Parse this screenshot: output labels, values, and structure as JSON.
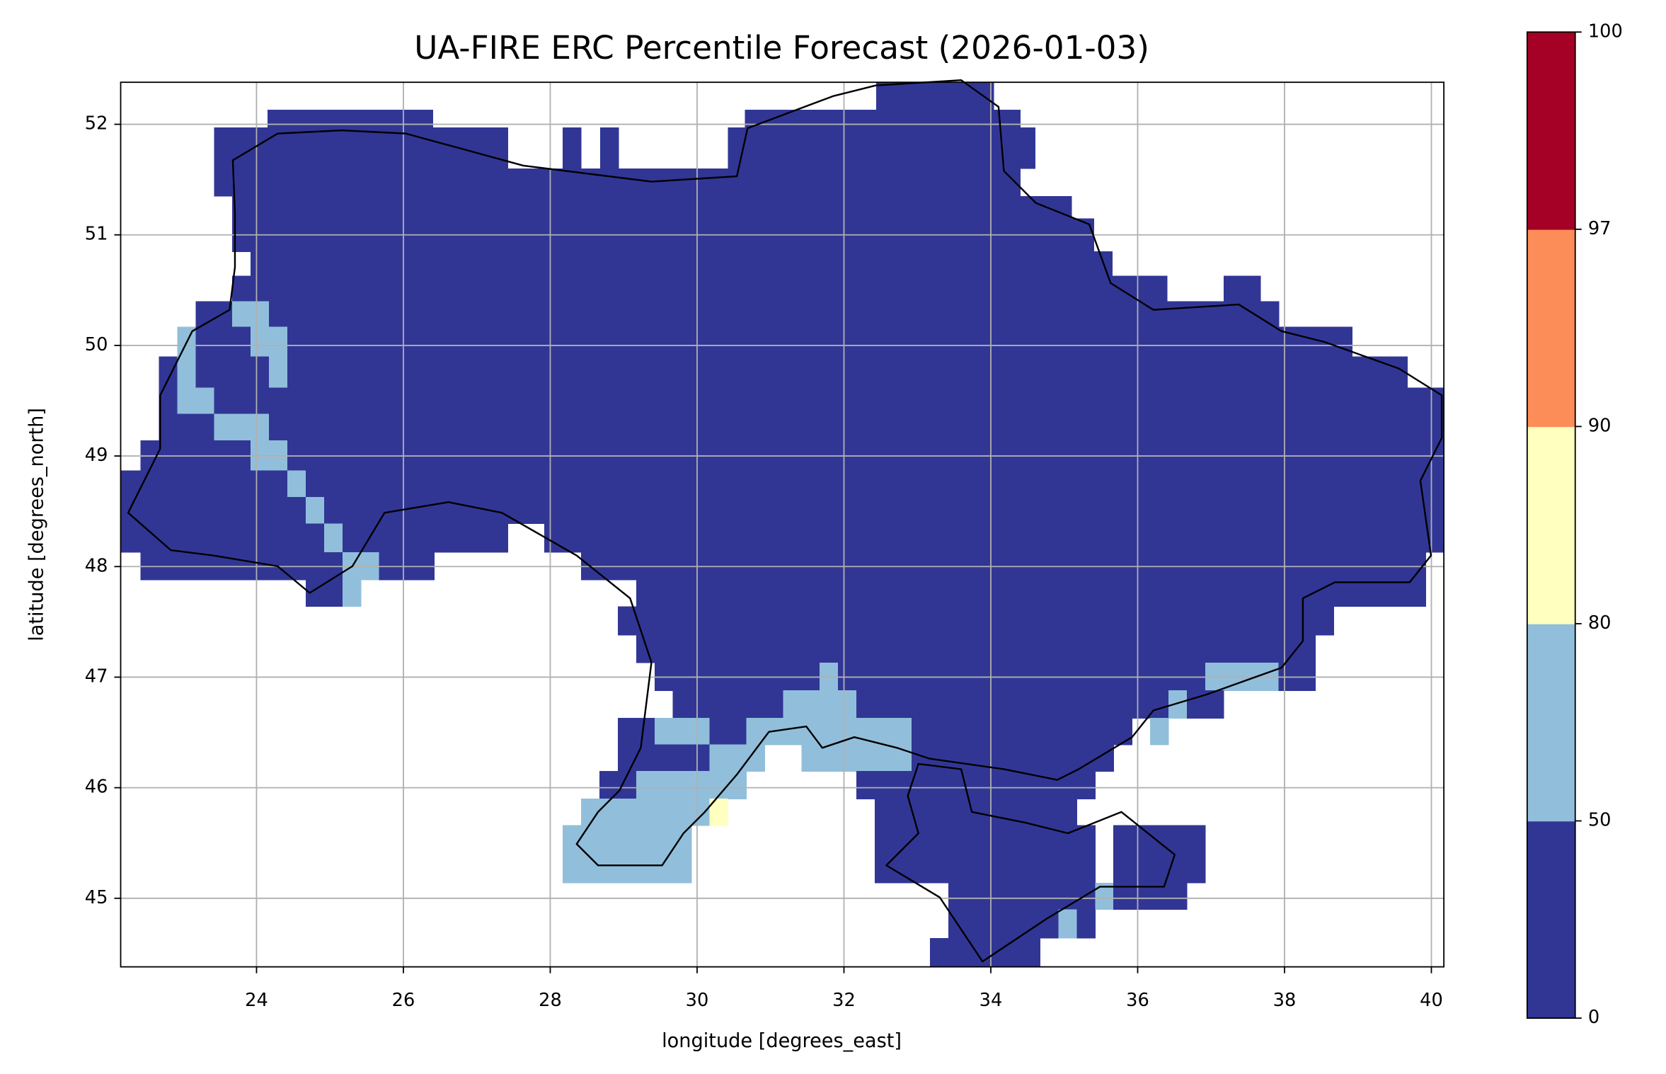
{
  "chart_data": {
    "type": "raster-map",
    "title": "UA-FIRE ERC Percentile Forecast (2026-01-03)",
    "x_label": "longitude [degrees_east]",
    "y_label": "latitude [degrees_north]",
    "xlim": [
      22.15,
      40.17
    ],
    "ylim": [
      44.38,
      52.38
    ],
    "xticks": [
      24,
      26,
      28,
      30,
      32,
      34,
      36,
      38,
      40
    ],
    "yticks": [
      45,
      46,
      47,
      48,
      49,
      50,
      51,
      52
    ],
    "grid": true,
    "colorbar": {
      "boundaries": [
        0,
        50,
        80,
        90,
        97,
        100
      ],
      "colors": [
        "#313695",
        "#91bfdb",
        "#ffffbf",
        "#fc8d59",
        "#a50026"
      ]
    },
    "cells": [
      {
        "lat": [
          52.13,
          52.38
        ],
        "spans": [
          [
            32.44,
            34.04,
            25
          ]
        ]
      },
      {
        "lat": [
          51.97,
          52.13
        ],
        "spans": [
          [
            24.15,
            26.4,
            25
          ],
          [
            30.65,
            34.4,
            25
          ]
        ]
      },
      {
        "lat": [
          51.6,
          51.97
        ],
        "spans": [
          [
            23.42,
            27.42,
            25
          ],
          [
            28.17,
            28.42,
            25
          ],
          [
            28.68,
            28.93,
            25
          ],
          [
            30.42,
            34.6,
            25
          ]
        ]
      },
      {
        "lat": [
          51.35,
          51.6
        ],
        "spans": [
          [
            23.42,
            34.4,
            25
          ]
        ]
      },
      {
        "lat": [
          51.15,
          51.35
        ],
        "spans": [
          [
            23.67,
            35.1,
            25
          ]
        ]
      },
      {
        "lat": [
          50.85,
          51.15
        ],
        "spans": [
          [
            23.67,
            35.4,
            25
          ]
        ]
      },
      {
        "lat": [
          50.63,
          50.85
        ],
        "spans": [
          [
            23.92,
            35.65,
            25
          ]
        ]
      },
      {
        "lat": [
          50.4,
          50.63
        ],
        "spans": [
          [
            23.67,
            36.4,
            25
          ],
          [
            37.17,
            37.67,
            25
          ]
        ]
      },
      {
        "lat": [
          50.17,
          50.4
        ],
        "spans": [
          [
            23.17,
            23.67,
            25
          ],
          [
            23.67,
            24.17,
            65
          ],
          [
            24.17,
            37.92,
            25
          ]
        ]
      },
      {
        "lat": [
          49.9,
          50.17
        ],
        "spans": [
          [
            22.92,
            23.17,
            65
          ],
          [
            23.17,
            23.92,
            25
          ],
          [
            23.92,
            24.42,
            65
          ],
          [
            24.42,
            38.92,
            25
          ]
        ]
      },
      {
        "lat": [
          49.62,
          49.9
        ],
        "spans": [
          [
            22.67,
            22.92,
            25
          ],
          [
            22.92,
            23.17,
            65
          ],
          [
            23.17,
            24.17,
            25
          ],
          [
            24.17,
            24.42,
            65
          ],
          [
            24.42,
            39.67,
            25
          ]
        ]
      },
      {
        "lat": [
          49.38,
          49.62
        ],
        "spans": [
          [
            22.67,
            22.92,
            25
          ],
          [
            22.92,
            23.42,
            65
          ],
          [
            23.42,
            40.17,
            25
          ]
        ]
      },
      {
        "lat": [
          49.14,
          49.38
        ],
        "spans": [
          [
            22.67,
            23.42,
            25
          ],
          [
            23.42,
            24.17,
            65
          ],
          [
            24.17,
            40.17,
            25
          ]
        ]
      },
      {
        "lat": [
          48.87,
          49.14
        ],
        "spans": [
          [
            22.42,
            23.92,
            25
          ],
          [
            23.92,
            24.42,
            65
          ],
          [
            24.42,
            40.17,
            25
          ]
        ]
      },
      {
        "lat": [
          48.63,
          48.87
        ],
        "spans": [
          [
            22.15,
            24.42,
            25
          ],
          [
            24.42,
            24.67,
            65
          ],
          [
            24.67,
            40.17,
            25
          ]
        ]
      },
      {
        "lat": [
          48.39,
          48.63
        ],
        "spans": [
          [
            22.15,
            24.67,
            25
          ],
          [
            24.67,
            24.92,
            65
          ],
          [
            24.92,
            40.17,
            25
          ]
        ]
      },
      {
        "lat": [
          48.13,
          48.39
        ],
        "spans": [
          [
            22.15,
            24.92,
            25
          ],
          [
            24.92,
            25.17,
            65
          ],
          [
            25.17,
            27.42,
            25
          ],
          [
            27.92,
            40.17,
            25
          ]
        ]
      },
      {
        "lat": [
          47.88,
          48.13
        ],
        "spans": [
          [
            22.42,
            25.17,
            25
          ],
          [
            25.17,
            25.67,
            65
          ],
          [
            25.67,
            26.42,
            25
          ],
          [
            28.42,
            39.92,
            25
          ]
        ]
      },
      {
        "lat": [
          47.64,
          47.88
        ],
        "spans": [
          [
            24.67,
            25.17,
            25
          ],
          [
            25.17,
            25.42,
            65
          ],
          [
            29.17,
            39.92,
            25
          ]
        ]
      },
      {
        "lat": [
          47.38,
          47.64
        ],
        "spans": [
          [
            28.92,
            38.67,
            25
          ]
        ]
      },
      {
        "lat": [
          47.13,
          47.38
        ],
        "spans": [
          [
            29.17,
            38.42,
            25
          ]
        ]
      },
      {
        "lat": [
          46.88,
          47.13
        ],
        "spans": [
          [
            29.42,
            31.67,
            25
          ],
          [
            31.67,
            31.92,
            65
          ],
          [
            31.92,
            36.92,
            25
          ],
          [
            36.92,
            37.92,
            65
          ],
          [
            37.92,
            38.42,
            25
          ]
        ]
      },
      {
        "lat": [
          46.63,
          46.88
        ],
        "spans": [
          [
            29.67,
            31.17,
            25
          ],
          [
            31.17,
            32.17,
            65
          ],
          [
            32.17,
            36.42,
            25
          ],
          [
            36.42,
            36.67,
            65
          ],
          [
            36.67,
            37.17,
            25
          ]
        ]
      },
      {
        "lat": [
          46.39,
          46.63
        ],
        "spans": [
          [
            28.92,
            29.42,
            25
          ],
          [
            29.42,
            30.17,
            65
          ],
          [
            30.17,
            30.67,
            25
          ],
          [
            30.67,
            32.92,
            65
          ],
          [
            32.92,
            35.92,
            25
          ],
          [
            36.17,
            36.42,
            65
          ]
        ]
      },
      {
        "lat": [
          46.15,
          46.39
        ],
        "spans": [
          [
            28.92,
            30.17,
            25
          ],
          [
            30.17,
            30.92,
            65
          ],
          [
            31.42,
            32.92,
            65
          ],
          [
            32.92,
            35.67,
            25
          ]
        ]
      },
      {
        "lat": [
          45.9,
          46.15
        ],
        "spans": [
          [
            28.67,
            29.17,
            25
          ],
          [
            29.17,
            30.67,
            65
          ],
          [
            32.17,
            35.42,
            25
          ]
        ]
      },
      {
        "lat": [
          45.66,
          45.9
        ],
        "spans": [
          [
            28.42,
            30.17,
            65
          ],
          [
            30.17,
            30.42,
            85
          ],
          [
            32.42,
            35.17,
            25
          ]
        ]
      },
      {
        "lat": [
          45.14,
          45.66
        ],
        "spans": [
          [
            28.17,
            29.92,
            65
          ],
          [
            32.42,
            35.42,
            25
          ],
          [
            35.67,
            36.92,
            25
          ]
        ]
      },
      {
        "lat": [
          44.9,
          45.14
        ],
        "spans": [
          [
            33.42,
            35.42,
            25
          ],
          [
            35.42,
            35.67,
            65
          ],
          [
            35.67,
            36.67,
            25
          ]
        ]
      },
      {
        "lat": [
          44.64,
          44.9
        ],
        "spans": [
          [
            33.42,
            34.92,
            25
          ],
          [
            34.92,
            35.17,
            65
          ],
          [
            35.17,
            35.42,
            25
          ]
        ]
      },
      {
        "lat": [
          44.38,
          44.64
        ],
        "spans": [
          [
            33.17,
            34.67,
            25
          ]
        ]
      }
    ]
  }
}
